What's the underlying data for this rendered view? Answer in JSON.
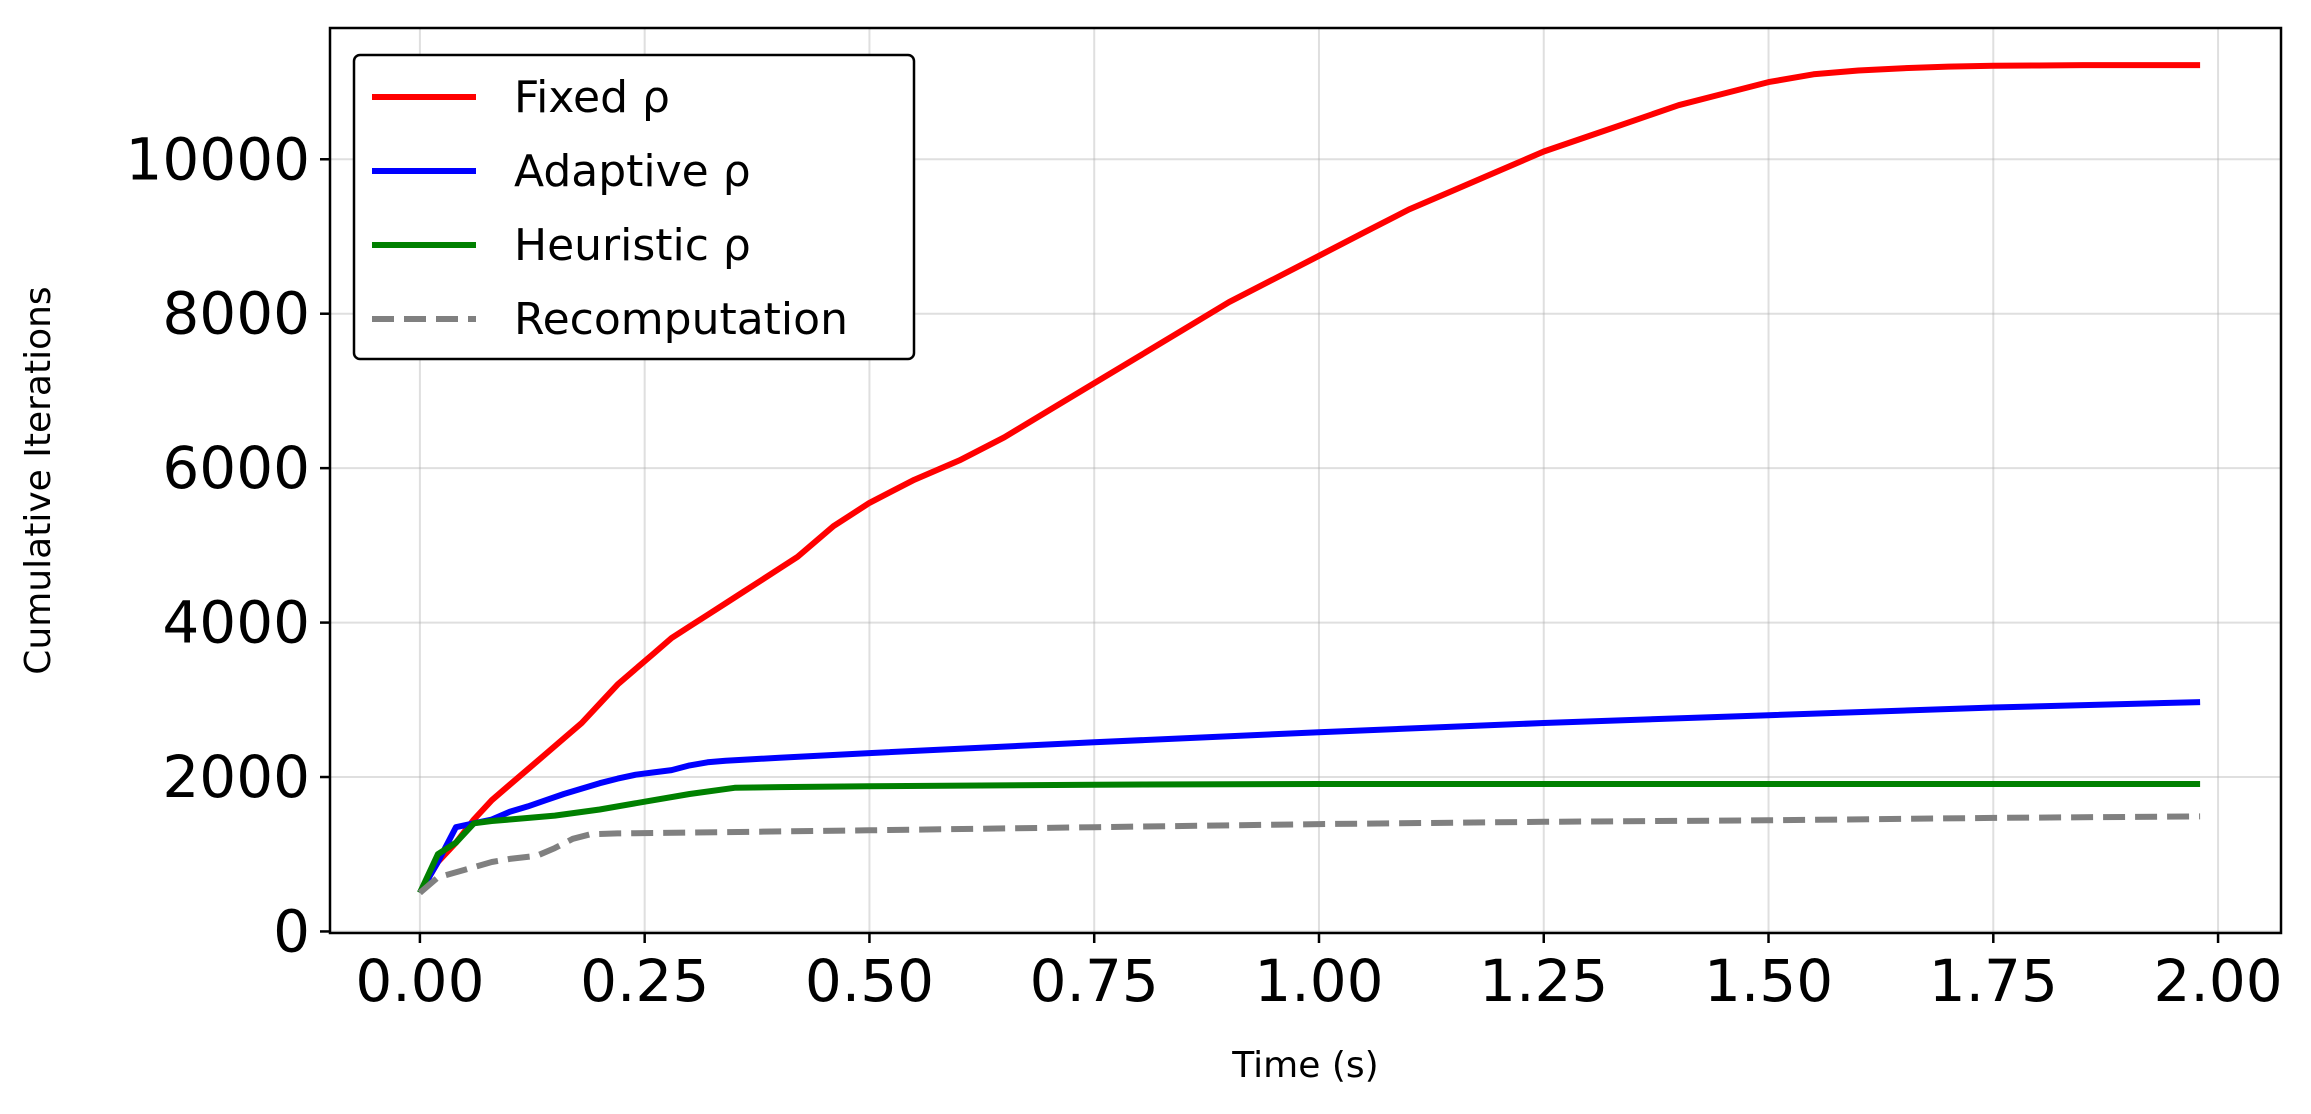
{
  "chart_data": {
    "type": "line",
    "xlabel": "Time (s)",
    "ylabel": "Cumulative Iterations",
    "xlim": [
      -0.1,
      2.07
    ],
    "ylim": [
      -20,
      11700
    ],
    "xticks": [
      0.0,
      0.25,
      0.5,
      0.75,
      1.0,
      1.25,
      1.5,
      1.75,
      2.0
    ],
    "xtick_labels": [
      "0.00",
      "0.25",
      "0.50",
      "0.75",
      "1.00",
      "1.25",
      "1.50",
      "1.75",
      "2.00"
    ],
    "yticks": [
      0,
      2000,
      4000,
      6000,
      8000,
      10000
    ],
    "ytick_labels": [
      "0",
      "2000",
      "4000",
      "6000",
      "8000",
      "10000"
    ],
    "grid": true,
    "legend_position": "top-left",
    "series": [
      {
        "name": "Fixed ρ",
        "color": "#ff0000",
        "dash": "solid",
        "x": [
          0.0,
          0.02,
          0.04,
          0.06,
          0.08,
          0.1,
          0.12,
          0.14,
          0.16,
          0.18,
          0.2,
          0.22,
          0.24,
          0.26,
          0.28,
          0.3,
          0.32,
          0.34,
          0.36,
          0.38,
          0.4,
          0.42,
          0.44,
          0.46,
          0.48,
          0.5,
          0.55,
          0.6,
          0.65,
          0.7,
          0.75,
          0.8,
          0.85,
          0.9,
          0.95,
          1.0,
          1.05,
          1.1,
          1.15,
          1.2,
          1.25,
          1.3,
          1.35,
          1.4,
          1.45,
          1.5,
          1.55,
          1.6,
          1.65,
          1.7,
          1.75,
          1.8,
          1.85,
          1.9,
          1.95,
          1.98
        ],
        "y": [
          500,
          900,
          1150,
          1450,
          1700,
          1900,
          2100,
          2300,
          2500,
          2700,
          2950,
          3200,
          3400,
          3600,
          3800,
          3950,
          4100,
          4250,
          4400,
          4550,
          4700,
          4850,
          5050,
          5250,
          5400,
          5550,
          5850,
          6100,
          6400,
          6750,
          7100,
          7450,
          7800,
          8150,
          8450,
          8750,
          9050,
          9350,
          9600,
          9850,
          10100,
          10300,
          10500,
          10700,
          10850,
          11000,
          11100,
          11150,
          11180,
          11200,
          11210,
          11215,
          11220,
          11220,
          11220,
          11220
        ]
      },
      {
        "name": "Adaptive ρ",
        "color": "#0000ff",
        "dash": "solid",
        "x": [
          0.0,
          0.02,
          0.04,
          0.06,
          0.08,
          0.1,
          0.12,
          0.14,
          0.16,
          0.18,
          0.2,
          0.22,
          0.24,
          0.26,
          0.28,
          0.3,
          0.32,
          0.34,
          0.4,
          0.5,
          0.75,
          1.0,
          1.25,
          1.5,
          1.75,
          1.98
        ],
        "y": [
          500,
          900,
          1350,
          1400,
          1450,
          1550,
          1620,
          1700,
          1780,
          1850,
          1920,
          1980,
          2030,
          2060,
          2090,
          2150,
          2190,
          2210,
          2250,
          2310,
          2450,
          2580,
          2700,
          2800,
          2900,
          2970
        ]
      },
      {
        "name": "Heuristic ρ",
        "color": "#008000",
        "dash": "solid",
        "x": [
          0.0,
          0.02,
          0.04,
          0.06,
          0.08,
          0.1,
          0.15,
          0.2,
          0.25,
          0.3,
          0.35,
          0.4,
          0.5,
          0.75,
          1.0,
          1.25,
          1.5,
          1.75,
          1.98
        ],
        "y": [
          500,
          1000,
          1150,
          1400,
          1430,
          1450,
          1500,
          1580,
          1680,
          1780,
          1860,
          1870,
          1880,
          1900,
          1910,
          1910,
          1910,
          1910,
          1910
        ]
      },
      {
        "name": "Recomputation",
        "color": "#808080",
        "dash": "dashed",
        "x": [
          0.0,
          0.02,
          0.05,
          0.08,
          0.1,
          0.13,
          0.15,
          0.17,
          0.19,
          0.22,
          0.3,
          0.5,
          0.75,
          1.0,
          1.25,
          1.5,
          1.75,
          1.98
        ],
        "y": [
          500,
          700,
          800,
          900,
          940,
          980,
          1080,
          1200,
          1260,
          1270,
          1280,
          1310,
          1350,
          1390,
          1420,
          1440,
          1470,
          1490
        ]
      }
    ]
  }
}
